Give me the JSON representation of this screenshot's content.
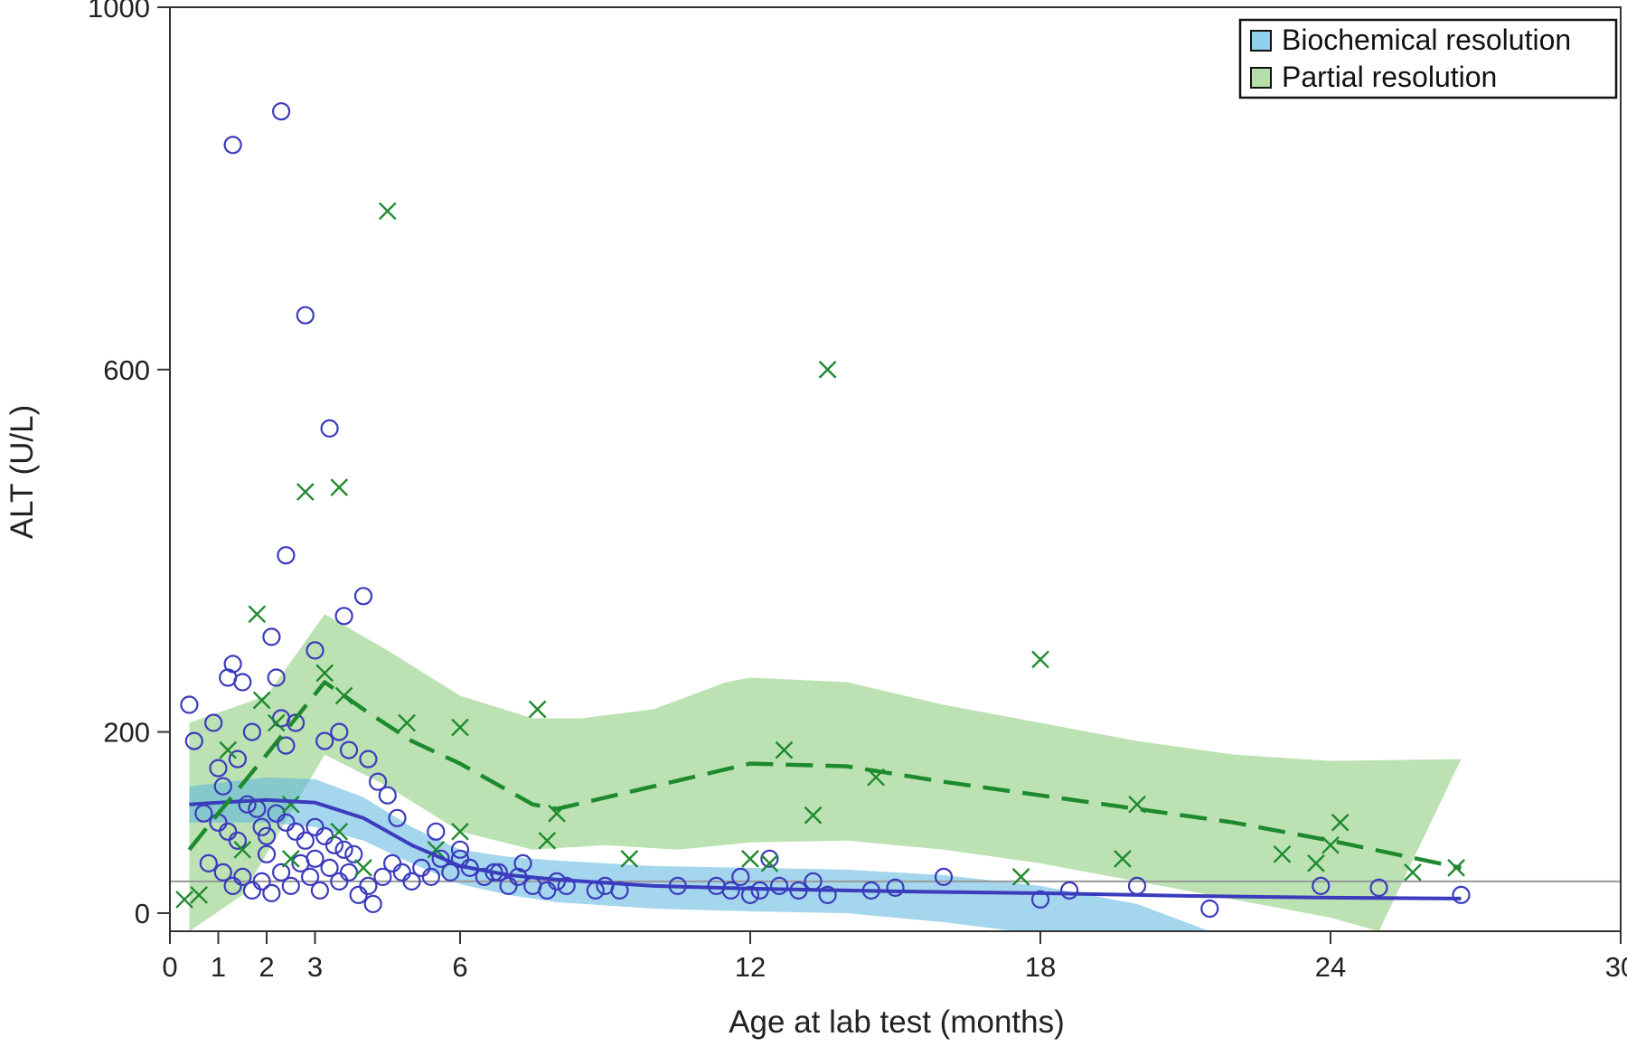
{
  "chart_data": {
    "type": "scatter",
    "title": "",
    "xlabel": "Age at lab test (months)",
    "ylabel": "ALT (U/L)",
    "xlim": [
      0,
      30
    ],
    "ylim": [
      -20,
      1000
    ],
    "x_ticks": [
      0,
      1,
      2,
      3,
      6,
      12,
      18,
      24,
      30
    ],
    "y_ticks": [
      0,
      200,
      600,
      1000
    ],
    "reference_line_y": 35,
    "legend_position": "top-right",
    "colors": {
      "biochemical": "#3b3bbd",
      "biochemical_band": "#5ab4e0",
      "partial": "#1e8a2e",
      "partial_band": "#8fcf80",
      "reference": "#999999",
      "axis": "#333333"
    },
    "legend": [
      {
        "label": "Biochemical resolution",
        "color": "#8fd0ec"
      },
      {
        "label": "Partial resolution",
        "color": "#b5deaa"
      }
    ],
    "series": [
      {
        "name": "Biochemical resolution",
        "marker": "circle",
        "points": [
          [
            0.4,
            230
          ],
          [
            0.5,
            190
          ],
          [
            0.9,
            210
          ],
          [
            1.0,
            160
          ],
          [
            1.1,
            140
          ],
          [
            1.2,
            260
          ],
          [
            1.3,
            275
          ],
          [
            1.4,
            170
          ],
          [
            1.5,
            255
          ],
          [
            1.7,
            200
          ],
          [
            1.8,
            115
          ],
          [
            2.1,
            305
          ],
          [
            2.2,
            260
          ],
          [
            2.3,
            215
          ],
          [
            2.4,
            185
          ],
          [
            2.6,
            210
          ],
          [
            3.0,
            290
          ],
          [
            3.2,
            190
          ],
          [
            3.5,
            200
          ],
          [
            3.7,
            180
          ],
          [
            4.1,
            170
          ],
          [
            4.3,
            145
          ],
          [
            4.5,
            130
          ],
          [
            4.7,
            105
          ],
          [
            1.3,
            848
          ],
          [
            2.3,
            885
          ],
          [
            2.8,
            660
          ],
          [
            3.3,
            535
          ],
          [
            2.4,
            395
          ],
          [
            3.6,
            328
          ],
          [
            4.0,
            350
          ],
          [
            0.7,
            110
          ],
          [
            1.0,
            100
          ],
          [
            1.2,
            90
          ],
          [
            1.4,
            80
          ],
          [
            1.6,
            120
          ],
          [
            1.9,
            95
          ],
          [
            2.0,
            85
          ],
          [
            2.2,
            110
          ],
          [
            2.4,
            100
          ],
          [
            2.6,
            90
          ],
          [
            2.8,
            80
          ],
          [
            3.0,
            95
          ],
          [
            3.2,
            85
          ],
          [
            3.4,
            75
          ],
          [
            3.6,
            70
          ],
          [
            3.8,
            65
          ],
          [
            0.8,
            55
          ],
          [
            1.1,
            45
          ],
          [
            1.3,
            30
          ],
          [
            1.5,
            40
          ],
          [
            1.7,
            25
          ],
          [
            1.9,
            35
          ],
          [
            2.1,
            22
          ],
          [
            2.3,
            45
          ],
          [
            2.5,
            30
          ],
          [
            2.7,
            55
          ],
          [
            2.9,
            40
          ],
          [
            3.1,
            25
          ],
          [
            3.3,
            50
          ],
          [
            3.5,
            35
          ],
          [
            3.7,
            45
          ],
          [
            3.9,
            20
          ],
          [
            4.1,
            30
          ],
          [
            4.4,
            40
          ],
          [
            4.6,
            55
          ],
          [
            4.8,
            45
          ],
          [
            5.0,
            35
          ],
          [
            5.2,
            50
          ],
          [
            5.4,
            40
          ],
          [
            5.6,
            60
          ],
          [
            5.8,
            45
          ],
          [
            6.0,
            70
          ],
          [
            6.2,
            50
          ],
          [
            6.5,
            40
          ],
          [
            6.8,
            45
          ],
          [
            7.0,
            30
          ],
          [
            7.3,
            55
          ],
          [
            7.5,
            30
          ],
          [
            7.8,
            25
          ],
          [
            8.2,
            30
          ],
          [
            8.8,
            25
          ],
          [
            9.3,
            25
          ],
          [
            10.5,
            30
          ],
          [
            11.3,
            30
          ],
          [
            11.6,
            25
          ],
          [
            11.8,
            40
          ],
          [
            12.0,
            20
          ],
          [
            12.2,
            25
          ],
          [
            12.4,
            60
          ],
          [
            12.6,
            30
          ],
          [
            13.0,
            25
          ],
          [
            13.3,
            35
          ],
          [
            13.6,
            20
          ],
          [
            14.5,
            25
          ],
          [
            15.0,
            28
          ],
          [
            16.0,
            40
          ],
          [
            18.0,
            15
          ],
          [
            18.6,
            25
          ],
          [
            20.0,
            30
          ],
          [
            21.5,
            5
          ],
          [
            23.8,
            30
          ],
          [
            25.0,
            28
          ],
          [
            26.7,
            20
          ],
          [
            5.5,
            90
          ],
          [
            6.0,
            60
          ],
          [
            6.7,
            45
          ],
          [
            7.2,
            40
          ],
          [
            8.0,
            35
          ],
          [
            9.0,
            30
          ],
          [
            4.2,
            10
          ],
          [
            3.0,
            60
          ],
          [
            2.0,
            65
          ]
        ],
        "trend": [
          [
            0.4,
            120
          ],
          [
            1.0,
            122
          ],
          [
            2.0,
            125
          ],
          [
            3.0,
            122
          ],
          [
            4.0,
            105
          ],
          [
            5.0,
            75
          ],
          [
            6.0,
            52
          ],
          [
            7.0,
            42
          ],
          [
            8.0,
            37
          ],
          [
            10.0,
            30
          ],
          [
            12.0,
            27
          ],
          [
            15.0,
            24
          ],
          [
            18.0,
            22
          ],
          [
            21.0,
            19
          ],
          [
            24.0,
            17
          ],
          [
            26.7,
            16
          ]
        ],
        "band_upper": [
          [
            0.4,
            140
          ],
          [
            2.0,
            150
          ],
          [
            3.0,
            148
          ],
          [
            4.0,
            128
          ],
          [
            5.0,
            95
          ],
          [
            6.0,
            70
          ],
          [
            7.0,
            62
          ],
          [
            8.0,
            58
          ],
          [
            10.0,
            52
          ],
          [
            12.0,
            50
          ],
          [
            14.0,
            48
          ],
          [
            16.0,
            42
          ],
          [
            18.0,
            30
          ],
          [
            20.0,
            10
          ],
          [
            21.5,
            -20
          ]
        ],
        "band_lower": [
          [
            0.4,
            100
          ],
          [
            2.0,
            100
          ],
          [
            3.0,
            95
          ],
          [
            4.0,
            80
          ],
          [
            5.0,
            55
          ],
          [
            6.0,
            32
          ],
          [
            7.0,
            20
          ],
          [
            8.0,
            12
          ],
          [
            10.0,
            5
          ],
          [
            12.0,
            2
          ],
          [
            14.0,
            0
          ],
          [
            16.0,
            -10
          ],
          [
            17.5,
            -20
          ]
        ]
      },
      {
        "name": "Partial resolution",
        "marker": "x",
        "points": [
          [
            0.3,
            15
          ],
          [
            0.6,
            20
          ],
          [
            1.2,
            180
          ],
          [
            1.8,
            330
          ],
          [
            1.9,
            235
          ],
          [
            2.2,
            210
          ],
          [
            2.5,
            120
          ],
          [
            2.8,
            465
          ],
          [
            3.2,
            265
          ],
          [
            3.5,
            470
          ],
          [
            3.6,
            240
          ],
          [
            4.5,
            775
          ],
          [
            4.9,
            210
          ],
          [
            6.0,
            205
          ],
          [
            7.6,
            225
          ],
          [
            8.0,
            110
          ],
          [
            7.8,
            80
          ],
          [
            9.5,
            60
          ],
          [
            12.0,
            60
          ],
          [
            12.4,
            55
          ],
          [
            12.7,
            180
          ],
          [
            13.3,
            108
          ],
          [
            13.6,
            600
          ],
          [
            14.6,
            150
          ],
          [
            17.6,
            40
          ],
          [
            18.0,
            280
          ],
          [
            19.7,
            60
          ],
          [
            20.0,
            120
          ],
          [
            23.0,
            65
          ],
          [
            23.7,
            55
          ],
          [
            24.0,
            75
          ],
          [
            24.2,
            100
          ],
          [
            25.7,
            45
          ],
          [
            26.6,
            50
          ],
          [
            3.5,
            90
          ],
          [
            4.0,
            50
          ],
          [
            5.5,
            70
          ],
          [
            6.0,
            90
          ],
          [
            1.5,
            70
          ],
          [
            2.5,
            60
          ]
        ],
        "trend": [
          [
            0.4,
            70
          ],
          [
            1.0,
            110
          ],
          [
            2.0,
            175
          ],
          [
            3.2,
            255
          ],
          [
            4.0,
            225
          ],
          [
            5.0,
            190
          ],
          [
            6.0,
            165
          ],
          [
            7.5,
            120
          ],
          [
            8.0,
            115
          ],
          [
            10.0,
            140
          ],
          [
            12.0,
            165
          ],
          [
            14.0,
            162
          ],
          [
            16.0,
            145
          ],
          [
            18.0,
            130
          ],
          [
            20.0,
            115
          ],
          [
            22.0,
            100
          ],
          [
            24.0,
            80
          ],
          [
            26.7,
            50
          ]
        ],
        "band_upper": [
          [
            0.4,
            210
          ],
          [
            2.0,
            240
          ],
          [
            3.2,
            330
          ],
          [
            4.5,
            290
          ],
          [
            6.0,
            240
          ],
          [
            7.5,
            215
          ],
          [
            8.5,
            215
          ],
          [
            10.0,
            225
          ],
          [
            11.5,
            255
          ],
          [
            12.0,
            260
          ],
          [
            14.0,
            255
          ],
          [
            16.0,
            230
          ],
          [
            18.0,
            210
          ],
          [
            20.0,
            190
          ],
          [
            22.0,
            175
          ],
          [
            24.0,
            168
          ],
          [
            26.7,
            170
          ]
        ],
        "band_lower": [
          [
            0.4,
            -20
          ],
          [
            1.5,
            20
          ],
          [
            3.2,
            175
          ],
          [
            4.5,
            140
          ],
          [
            6.0,
            90
          ],
          [
            7.5,
            70
          ],
          [
            9.0,
            75
          ],
          [
            10.5,
            70
          ],
          [
            12.0,
            78
          ],
          [
            14.0,
            80
          ],
          [
            16.0,
            70
          ],
          [
            18.0,
            55
          ],
          [
            20.0,
            35
          ],
          [
            22.0,
            15
          ],
          [
            24.0,
            -5
          ],
          [
            25.0,
            -20
          ]
        ]
      }
    ]
  }
}
